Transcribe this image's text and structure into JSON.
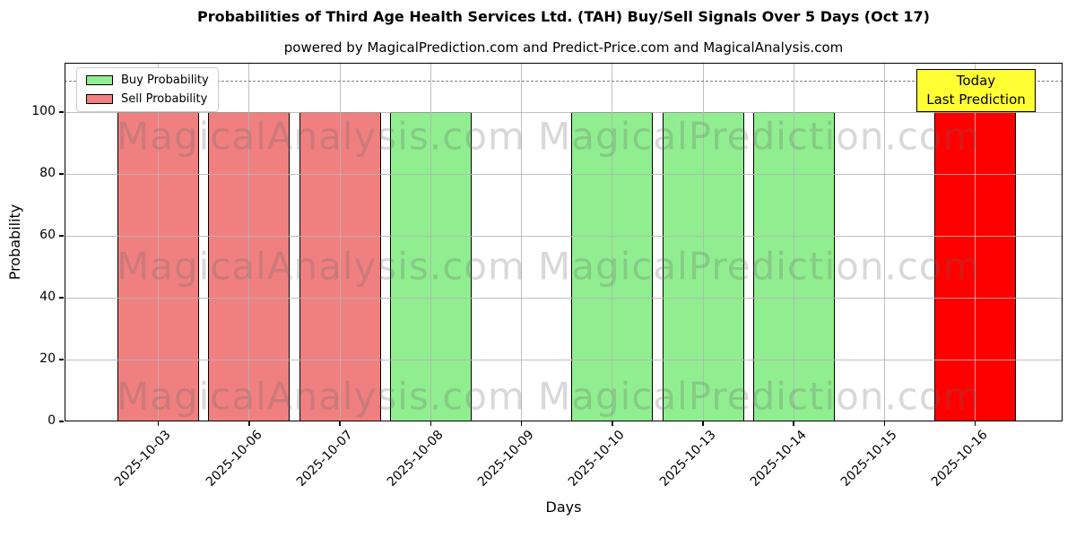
{
  "chart_data": {
    "type": "bar",
    "title": "Probabilities of Third Age Health Services Ltd. (TAH) Buy/Sell Signals Over 5 Days (Oct 17)",
    "subtitle": "powered by MagicalPrediction.com and Predict-Price.com and MagicalAnalysis.com",
    "xlabel": "Days",
    "ylabel": "Probability",
    "ylim": [
      0,
      116
    ],
    "yticks": [
      0,
      20,
      40,
      60,
      80,
      100
    ],
    "grid": true,
    "categories": [
      "2025-10-03",
      "2025-10-06",
      "2025-10-07",
      "2025-10-08",
      "2025-10-09",
      "2025-10-10",
      "2025-10-13",
      "2025-10-14",
      "2025-10-15",
      "2025-10-16"
    ],
    "series": [
      {
        "name": "Buy Probability",
        "color": "#90ee90",
        "values": [
          null,
          null,
          null,
          100,
          null,
          100,
          100,
          100,
          null,
          null
        ]
      },
      {
        "name": "Sell Probability",
        "color": "#f08080",
        "values": [
          100,
          100,
          100,
          null,
          null,
          null,
          null,
          null,
          null,
          null
        ]
      },
      {
        "name": "Today Last Prediction",
        "color": "#ff0000",
        "values": [
          null,
          null,
          null,
          null,
          null,
          null,
          null,
          null,
          null,
          100
        ]
      }
    ],
    "bar_edge_color": "#000000",
    "dashed_line_y": 110,
    "legend": {
      "position": "upper-left",
      "entries": [
        {
          "label": "Buy Probability",
          "color": "#90ee90"
        },
        {
          "label": "Sell Probability",
          "color": "#f08080"
        }
      ]
    },
    "annotation": {
      "lines": [
        "Today",
        "Last Prediction"
      ],
      "bg_color": "#ffff33",
      "border_color": "#000000"
    },
    "watermarks": {
      "left_text": "MagicalAnalysis.com",
      "right_text": "MagicalPrediction.com"
    }
  }
}
